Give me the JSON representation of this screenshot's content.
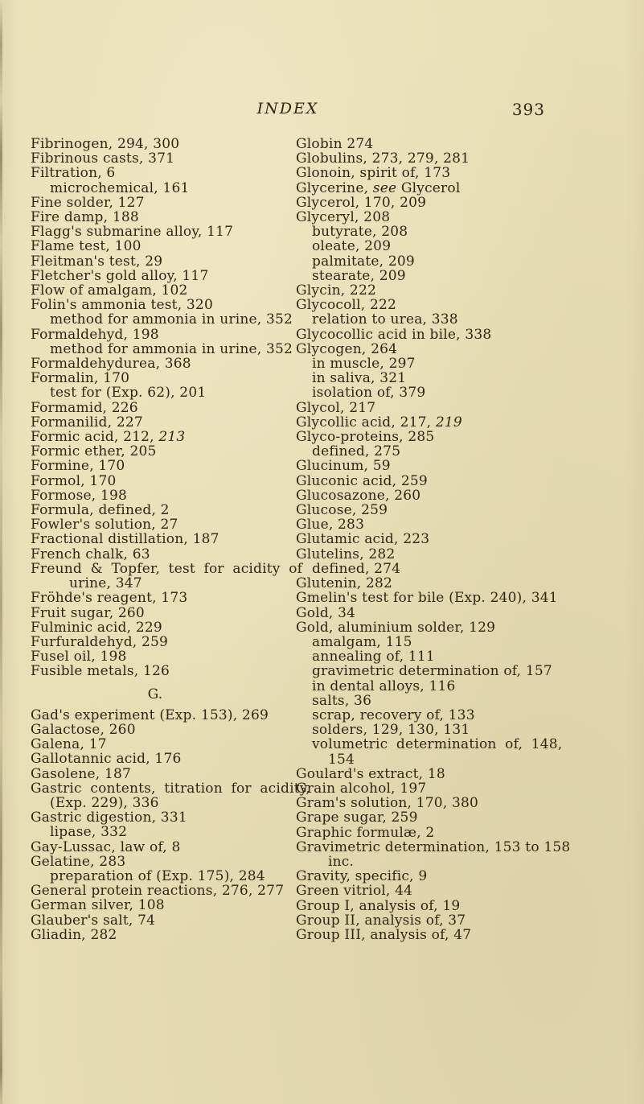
{
  "page": {
    "header_title": "INDEX",
    "page_number": "393",
    "background_color": "#e8deb4",
    "text_color": "#2e2617"
  },
  "left_column": {
    "entries": [
      {
        "text": "Fibrinogen, 294, 300",
        "indent": 0
      },
      {
        "text": "Fibrinous casts, 371",
        "indent": 0
      },
      {
        "text": "Filtration, 6",
        "indent": 0
      },
      {
        "text": "microchemical, 161",
        "indent": 1
      },
      {
        "text": "Fine solder, 127",
        "indent": 0
      },
      {
        "text": "Fire damp, 188",
        "indent": 0
      },
      {
        "text": "Flagg's submarine alloy, 117",
        "indent": 0
      },
      {
        "text": "Flame test, 100",
        "indent": 0
      },
      {
        "text": "Fleitman's test, 29",
        "indent": 0
      },
      {
        "text": "Fletcher's gold alloy, 117",
        "indent": 0
      },
      {
        "text": "Flow of amalgam, 102",
        "indent": 0
      },
      {
        "text": "Folin's ammonia test, 320",
        "indent": 0
      },
      {
        "text": "method for ammonia in urine, 352",
        "indent": 1
      },
      {
        "text": "Formaldehyd, 198",
        "indent": 0
      },
      {
        "text": "method for ammonia in urine, 352",
        "indent": 1
      },
      {
        "text": "Formaldehydurea, 368",
        "indent": 0
      },
      {
        "text": "Formalin, 170",
        "indent": 0
      },
      {
        "text": "test for (Exp. 62), 201",
        "indent": 1
      },
      {
        "text": "Formamid, 226",
        "indent": 0
      },
      {
        "text": "Formanilid, 227",
        "indent": 0
      },
      {
        "runs": [
          {
            "t": "Formic acid, 212, "
          },
          {
            "t": "213",
            "i": true
          }
        ],
        "indent": 0
      },
      {
        "text": "Formic ether, 205",
        "indent": 0
      },
      {
        "text": "Formine, 170",
        "indent": 0
      },
      {
        "text": "Formol, 170",
        "indent": 0
      },
      {
        "text": "Formose, 198",
        "indent": 0
      },
      {
        "text": "Formula, defined, 2",
        "indent": 0
      },
      {
        "text": "Fowler's solution, 27",
        "indent": 0
      },
      {
        "text": "Fractional distillation, 187",
        "indent": 0
      },
      {
        "text": "French chalk, 63",
        "indent": 0
      },
      {
        "text": "Freund & Topfer, test for acidity of",
        "indent": 0,
        "wide": true
      },
      {
        "text": "urine, 347",
        "indent": 2
      },
      {
        "text": "Fröhde's reagent, 173",
        "indent": 0
      },
      {
        "text": "Fruit sugar, 260",
        "indent": 0
      },
      {
        "text": "Fulminic acid, 229",
        "indent": 0
      },
      {
        "text": "Furfuraldehyd, 259",
        "indent": 0
      },
      {
        "text": "Fusel oil, 198",
        "indent": 0
      },
      {
        "text": "Fusible metals, 126",
        "indent": 0
      },
      {
        "text": "G.",
        "section": true
      },
      {
        "text": "Gad's experiment (Exp. 153), 269",
        "indent": 0
      },
      {
        "text": "Galactose, 260",
        "indent": 0
      },
      {
        "text": "Galena, 17",
        "indent": 0
      },
      {
        "text": "Gallotannic acid, 176",
        "indent": 0
      },
      {
        "text": "Gasolene, 187",
        "indent": 0
      },
      {
        "text": "Gastric contents, titration for acidity,",
        "indent": 0,
        "wide": true
      },
      {
        "text": "(Exp. 229), 336",
        "indent": 1
      },
      {
        "text": "Gastric digestion, 331",
        "indent": 0
      },
      {
        "text": "lipase, 332",
        "indent": 1
      },
      {
        "text": "Gay-Lussac, law of, 8",
        "indent": 0
      },
      {
        "text": "Gelatine, 283",
        "indent": 0
      },
      {
        "text": "preparation of (Exp. 175), 284",
        "indent": 1
      },
      {
        "text": "General protein reactions, 276, 277",
        "indent": 0
      },
      {
        "text": "German silver, 108",
        "indent": 0
      },
      {
        "text": "Glauber's salt, 74",
        "indent": 0
      },
      {
        "text": "Gliadin, 282",
        "indent": 0
      }
    ]
  },
  "right_column": {
    "entries": [
      {
        "text": "Globin 274",
        "indent": 0
      },
      {
        "text": "Globulins, 273, 279, 281",
        "indent": 0
      },
      {
        "text": "Glonoin, spirit of, 173",
        "indent": 0
      },
      {
        "runs": [
          {
            "t": "Glycerine, "
          },
          {
            "t": "see",
            "i": true
          },
          {
            "t": " Glycerol"
          }
        ],
        "indent": 0
      },
      {
        "text": "Glycerol, 170, 209",
        "indent": 0
      },
      {
        "text": "Glyceryl, 208",
        "indent": 0
      },
      {
        "text": "butyrate, 208",
        "indent": 1
      },
      {
        "text": "oleate, 209",
        "indent": 1
      },
      {
        "text": "palmitate, 209",
        "indent": 1
      },
      {
        "text": "stearate, 209",
        "indent": 1
      },
      {
        "text": "Glycin, 222",
        "indent": 0
      },
      {
        "text": "Glycocoll, 222",
        "indent": 0
      },
      {
        "text": "relation to urea, 338",
        "indent": 1
      },
      {
        "text": "Glycocollic acid in bile, 338",
        "indent": 0
      },
      {
        "text": "Glycogen, 264",
        "indent": 0
      },
      {
        "text": "in muscle, 297",
        "indent": 1
      },
      {
        "text": "in saliva, 321",
        "indent": 1
      },
      {
        "text": "isolation of, 379",
        "indent": 1
      },
      {
        "text": "Glycol, 217",
        "indent": 0
      },
      {
        "runs": [
          {
            "t": "Glycollic acid, 217, "
          },
          {
            "t": "219",
            "i": true
          }
        ],
        "indent": 0
      },
      {
        "text": "Glyco-proteins, 285",
        "indent": 0
      },
      {
        "text": "defined, 275",
        "indent": 1
      },
      {
        "text": "Glucinum, 59",
        "indent": 0
      },
      {
        "text": "Gluconic acid, 259",
        "indent": 0
      },
      {
        "text": "Glucosazone, 260",
        "indent": 0
      },
      {
        "text": "Glucose, 259",
        "indent": 0
      },
      {
        "text": "Glue, 283",
        "indent": 0
      },
      {
        "text": "Glutamic acid, 223",
        "indent": 0
      },
      {
        "text": "Glutelins, 282",
        "indent": 0
      },
      {
        "text": "defined, 274",
        "indent": 1
      },
      {
        "text": "Glutenin, 282",
        "indent": 0
      },
      {
        "text": "Gmelin's test for bile (Exp. 240), 341",
        "indent": 0
      },
      {
        "text": "Gold, 34",
        "indent": 0
      },
      {
        "text": "Gold, aluminium solder, 129",
        "indent": 0
      },
      {
        "text": "amalgam, 115",
        "indent": 1
      },
      {
        "text": "annealing of, 111",
        "indent": 1
      },
      {
        "text": "gravimetric determination of, 157",
        "indent": 1
      },
      {
        "text": "in dental alloys, 116",
        "indent": 1
      },
      {
        "text": "salts, 36",
        "indent": 1
      },
      {
        "text": "scrap, recovery of, 133",
        "indent": 1
      },
      {
        "text": "solders, 129, 130, 131",
        "indent": 1
      },
      {
        "text": "volumetric determination of, 148,",
        "indent": 1,
        "wide": true
      },
      {
        "text": "154",
        "indent": 2
      },
      {
        "text": "Goulard's extract, 18",
        "indent": 0
      },
      {
        "text": "Grain alcohol, 197",
        "indent": 0
      },
      {
        "text": "Gram's solution, 170, 380",
        "indent": 0
      },
      {
        "text": "Grape sugar, 259",
        "indent": 0
      },
      {
        "text": "Graphic formulæ, 2",
        "indent": 0
      },
      {
        "text": "Gravimetric determination, 153 to 158",
        "indent": 0
      },
      {
        "text": "inc.",
        "indent": 2
      },
      {
        "text": "Gravity, specific, 9",
        "indent": 0
      },
      {
        "text": "Green vitriol, 44",
        "indent": 0
      },
      {
        "text": "Group I, analysis of, 19",
        "indent": 0
      },
      {
        "text": "Group II, analysis of, 37",
        "indent": 0
      },
      {
        "text": "Group III, analysis of, 47",
        "indent": 0
      }
    ]
  }
}
